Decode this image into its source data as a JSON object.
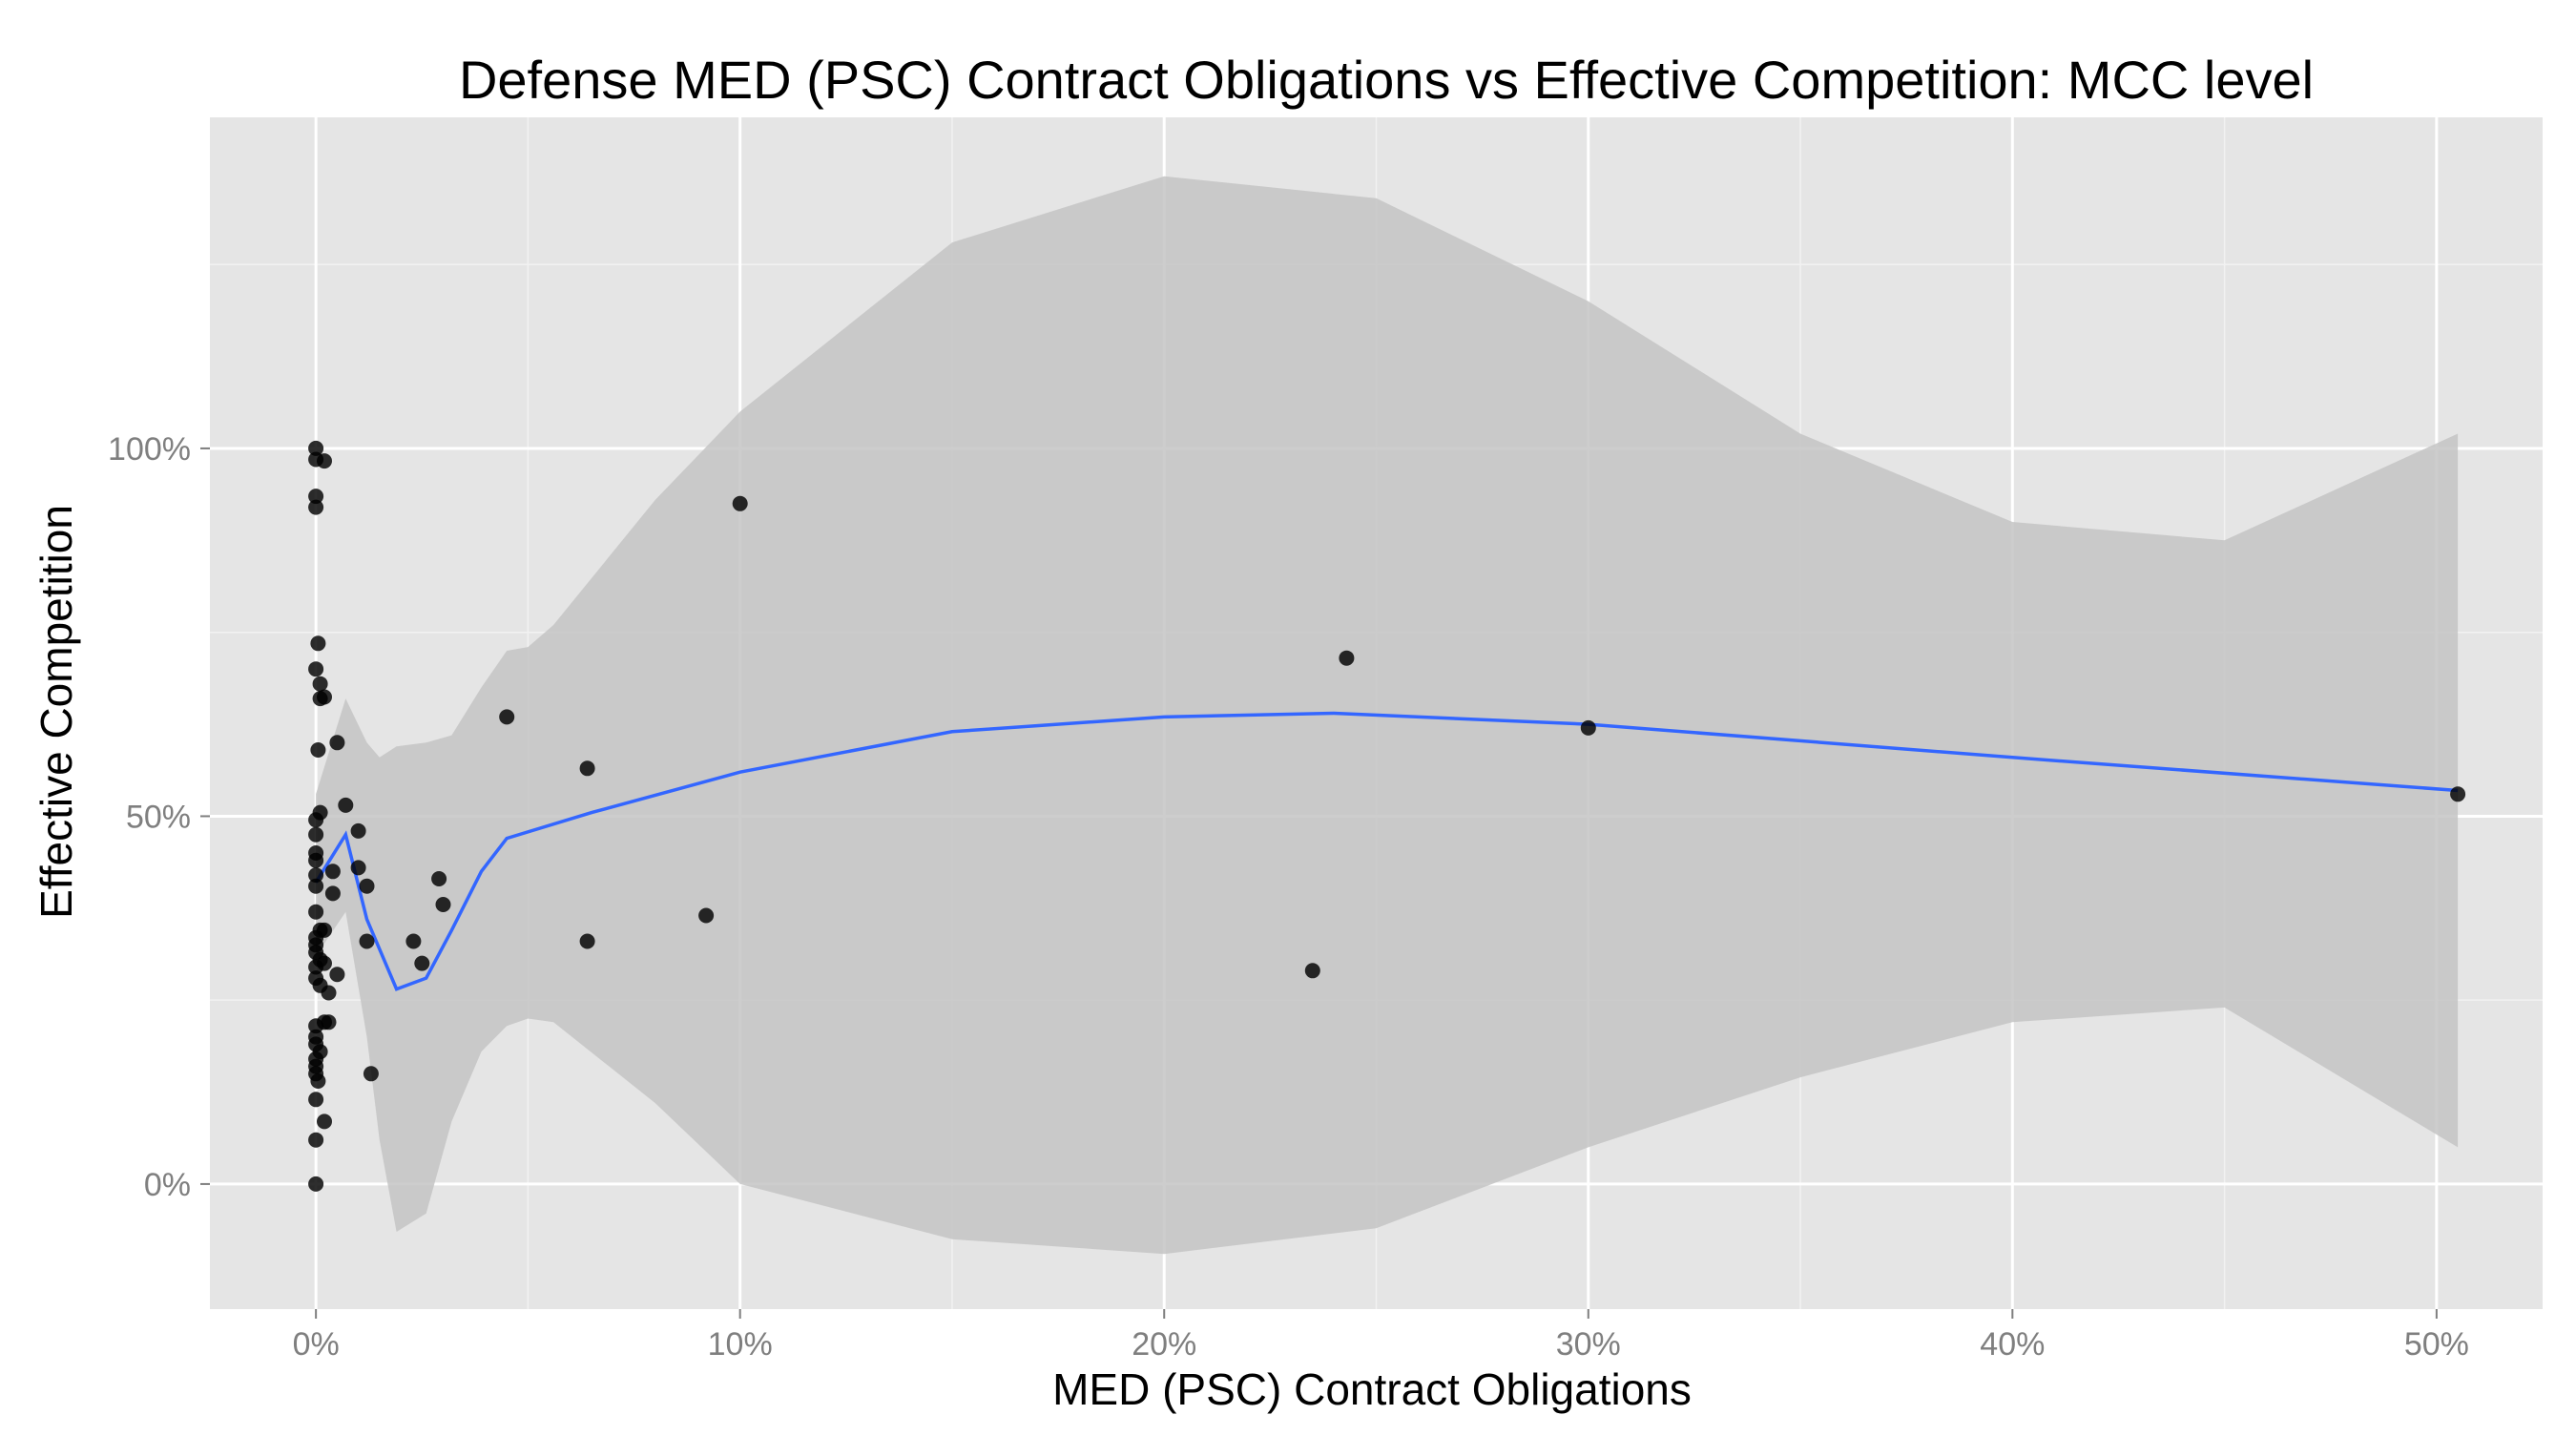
{
  "chart_data": {
    "type": "scatter",
    "title": "Defense MED (PSC) Contract Obligations vs Effective Competition: MCC level",
    "xlabel": "MED (PSC) Contract Obligations",
    "ylabel": "Effective Competition",
    "xlim": [
      -2.5,
      52.5
    ],
    "ylim": [
      -17,
      145
    ],
    "x_ticks": [
      {
        "value": 0,
        "label": "0%"
      },
      {
        "value": 10,
        "label": "10%"
      },
      {
        "value": 20,
        "label": "20%"
      },
      {
        "value": 30,
        "label": "30%"
      },
      {
        "value": 40,
        "label": "40%"
      },
      {
        "value": 50,
        "label": "50%"
      }
    ],
    "y_ticks": [
      {
        "value": 0,
        "label": "0%"
      },
      {
        "value": 50,
        "label": "50%"
      },
      {
        "value": 100,
        "label": "100%"
      }
    ],
    "x_minor_ticks": [
      5,
      15,
      25,
      35,
      45
    ],
    "y_minor_ticks": [
      25,
      75,
      125
    ],
    "grid": true,
    "colors": {
      "panel_background": "#e5e5e5",
      "grid_major": "#ffffff",
      "grid_minor": "#f2f2f2",
      "ribbon": "#c4c4c4",
      "smooth_line": "#3366ff",
      "points": "#000000"
    },
    "points": [
      {
        "x": 0.0,
        "y": 100
      },
      {
        "x": 0.0,
        "y": 98.5
      },
      {
        "x": 0.2,
        "y": 98.3
      },
      {
        "x": 0.0,
        "y": 93.5
      },
      {
        "x": 0.0,
        "y": 92
      },
      {
        "x": 0.05,
        "y": 73.5
      },
      {
        "x": 0.0,
        "y": 70
      },
      {
        "x": 0.1,
        "y": 68
      },
      {
        "x": 0.2,
        "y": 66.2
      },
      {
        "x": 0.1,
        "y": 66
      },
      {
        "x": 0.5,
        "y": 60
      },
      {
        "x": 0.05,
        "y": 59
      },
      {
        "x": 0.7,
        "y": 51.5
      },
      {
        "x": 0.1,
        "y": 50.5
      },
      {
        "x": 0.0,
        "y": 49.5
      },
      {
        "x": 1.0,
        "y": 48
      },
      {
        "x": 0.0,
        "y": 47.5
      },
      {
        "x": 0.0,
        "y": 45
      },
      {
        "x": 0.0,
        "y": 44
      },
      {
        "x": 0.4,
        "y": 42.5
      },
      {
        "x": 1.0,
        "y": 43
      },
      {
        "x": 0.0,
        "y": 42
      },
      {
        "x": 1.2,
        "y": 40.5
      },
      {
        "x": 0.0,
        "y": 40.5
      },
      {
        "x": 0.4,
        "y": 39.5
      },
      {
        "x": 0.0,
        "y": 37
      },
      {
        "x": 0.1,
        "y": 34.5
      },
      {
        "x": 0.2,
        "y": 34.5
      },
      {
        "x": 0.0,
        "y": 33.5
      },
      {
        "x": 1.2,
        "y": 33
      },
      {
        "x": 0.0,
        "y": 32.5
      },
      {
        "x": 0.0,
        "y": 31.5
      },
      {
        "x": 0.1,
        "y": 30.5
      },
      {
        "x": 0.2,
        "y": 30
      },
      {
        "x": 0.0,
        "y": 29.5
      },
      {
        "x": 0.5,
        "y": 28.5
      },
      {
        "x": 0.0,
        "y": 28
      },
      {
        "x": 0.1,
        "y": 27
      },
      {
        "x": 0.3,
        "y": 26
      },
      {
        "x": 0.2,
        "y": 22
      },
      {
        "x": 0.0,
        "y": 21.5
      },
      {
        "x": 0.3,
        "y": 22
      },
      {
        "x": 0.0,
        "y": 20
      },
      {
        "x": 0.0,
        "y": 19
      },
      {
        "x": 0.1,
        "y": 18
      },
      {
        "x": 0.0,
        "y": 17
      },
      {
        "x": 0.0,
        "y": 16
      },
      {
        "x": 0.0,
        "y": 15
      },
      {
        "x": 0.05,
        "y": 14
      },
      {
        "x": 0.0,
        "y": 11.5
      },
      {
        "x": 0.2,
        "y": 8.5
      },
      {
        "x": 0.0,
        "y": 6
      },
      {
        "x": 0.0,
        "y": 0
      },
      {
        "x": 1.3,
        "y": 15
      },
      {
        "x": 2.3,
        "y": 33
      },
      {
        "x": 2.5,
        "y": 30
      },
      {
        "x": 2.9,
        "y": 41.5
      },
      {
        "x": 3.0,
        "y": 38
      },
      {
        "x": 4.5,
        "y": 63.5
      },
      {
        "x": 6.4,
        "y": 56.5
      },
      {
        "x": 6.4,
        "y": 33
      },
      {
        "x": 9.2,
        "y": 36.5
      },
      {
        "x": 10.0,
        "y": 92.5
      },
      {
        "x": 23.5,
        "y": 29
      },
      {
        "x": 24.3,
        "y": 71.5
      },
      {
        "x": 30.0,
        "y": 62
      },
      {
        "x": 50.5,
        "y": 53
      }
    ],
    "smooth_line": {
      "x": [
        0.0,
        0.7,
        1.2,
        1.9,
        2.6,
        3.2,
        3.9,
        4.5,
        6.5,
        10,
        15,
        20,
        24,
        30,
        40,
        50.5
      ],
      "y": [
        41,
        47.5,
        36,
        26.5,
        28,
        34.5,
        42.5,
        47,
        50.5,
        56,
        61.5,
        63.5,
        64,
        62.5,
        58,
        53.5
      ]
    },
    "confidence_band": {
      "x": [
        0.0,
        0.7,
        1.2,
        1.5,
        1.9,
        2.6,
        3.2,
        3.9,
        4.5,
        5.0,
        5.6,
        8.0,
        10,
        15,
        20,
        25,
        30,
        35,
        40,
        45,
        50.5
      ],
      "upper": [
        53,
        66,
        60,
        58,
        59.5,
        60,
        61,
        67.5,
        72.5,
        73,
        76,
        93,
        105,
        128,
        137,
        134,
        120,
        102,
        90,
        87.5,
        102
      ],
      "lower": [
        31,
        37,
        20,
        6,
        -6.5,
        -4,
        8.5,
        18,
        21.5,
        22.5,
        22,
        11,
        0,
        -7.5,
        -9.5,
        -6,
        5,
        14.5,
        22,
        24,
        5
      ]
    }
  }
}
